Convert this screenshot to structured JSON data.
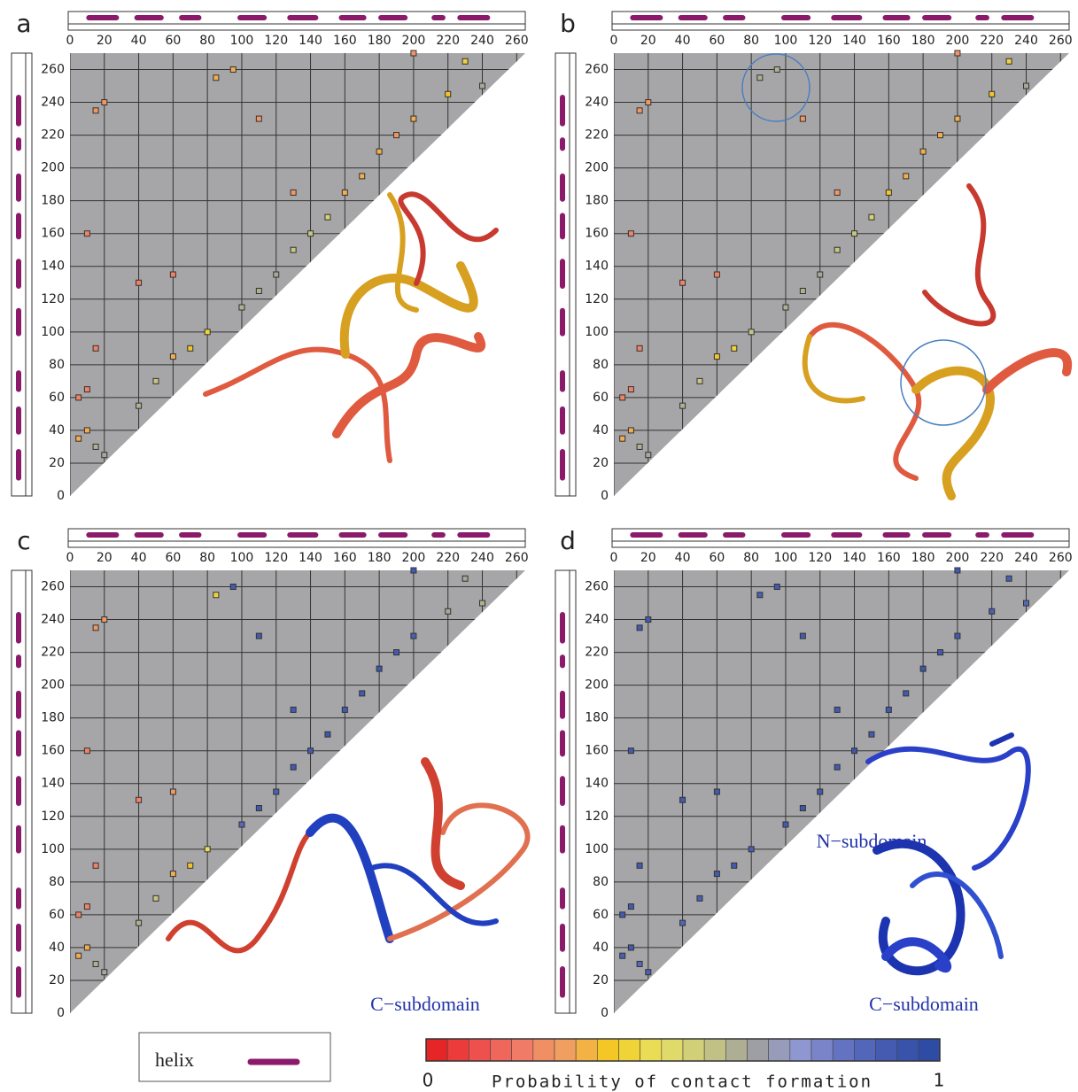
{
  "helices": [
    [
      11,
      27
    ],
    [
      39,
      53
    ],
    [
      65,
      75
    ],
    [
      99,
      113
    ],
    [
      128,
      143
    ],
    [
      158,
      171
    ],
    [
      181,
      195
    ],
    [
      212,
      217
    ],
    [
      227,
      243
    ]
  ],
  "legend": {
    "label": "helix"
  },
  "colorbar": {
    "ticks": [
      0,
      1
    ],
    "label": "Probability of contact formation",
    "colors": [
      "#e31a1c",
      "#ee4a48",
      "#f07a68",
      "#f0a060",
      "#f5cc20",
      "#e8e060",
      "#c8c880",
      "#a0a0a0",
      "#9098d0",
      "#6070c0",
      "#4058b0",
      "#2848a0"
    ]
  },
  "chart_data": [
    {
      "type": "scatter",
      "panel": "a",
      "xlim": [
        0,
        265
      ],
      "ylim": [
        0,
        270
      ],
      "xticks": [
        0,
        20,
        40,
        60,
        80,
        100,
        120,
        140,
        160,
        180,
        200,
        220,
        240,
        260
      ],
      "yticks": [
        0,
        20,
        40,
        60,
        80,
        100,
        120,
        140,
        160,
        180,
        200,
        220,
        240,
        260
      ],
      "x": [
        5,
        10,
        15,
        20,
        5,
        10,
        40,
        50,
        60,
        70,
        80,
        100,
        110,
        120,
        130,
        140,
        150,
        160,
        170,
        180,
        190,
        200,
        220,
        240,
        15,
        20,
        10,
        40,
        85,
        95,
        110,
        130,
        15,
        60,
        230,
        200
      ],
      "values": [
        35,
        40,
        30,
        25,
        60,
        65,
        55,
        70,
        85,
        90,
        100,
        115,
        125,
        135,
        150,
        160,
        170,
        185,
        195,
        210,
        220,
        230,
        245,
        250,
        235,
        240,
        160,
        130,
        255,
        260,
        230,
        185,
        90,
        135,
        265,
        270
      ],
      "probability": [
        0.3,
        0.3,
        0.6,
        0.62,
        0.2,
        0.2,
        0.6,
        0.55,
        0.3,
        0.35,
        0.4,
        0.6,
        0.6,
        0.62,
        0.55,
        0.55,
        0.5,
        0.3,
        0.3,
        0.3,
        0.25,
        0.3,
        0.35,
        0.62,
        0.25,
        0.25,
        0.2,
        0.2,
        0.3,
        0.3,
        0.25,
        0.25,
        0.2,
        0.2,
        0.4,
        0.25
      ],
      "annotations": []
    },
    {
      "type": "scatter",
      "panel": "b",
      "xlim": [
        0,
        265
      ],
      "ylim": [
        0,
        270
      ],
      "xticks": [
        0,
        20,
        40,
        60,
        80,
        100,
        120,
        140,
        160,
        180,
        200,
        220,
        240,
        260
      ],
      "yticks": [
        0,
        20,
        40,
        60,
        80,
        100,
        120,
        140,
        160,
        180,
        200,
        220,
        240,
        260
      ],
      "x": [
        5,
        10,
        15,
        20,
        5,
        10,
        40,
        50,
        60,
        70,
        80,
        100,
        110,
        120,
        130,
        140,
        150,
        160,
        170,
        180,
        190,
        200,
        220,
        240,
        15,
        20,
        10,
        40,
        85,
        95,
        110,
        130,
        15,
        60,
        230,
        200
      ],
      "values": [
        35,
        40,
        30,
        25,
        60,
        65,
        55,
        70,
        85,
        90,
        100,
        115,
        125,
        135,
        150,
        160,
        170,
        185,
        195,
        210,
        220,
        230,
        245,
        250,
        235,
        240,
        160,
        130,
        255,
        260,
        230,
        185,
        90,
        135,
        265,
        270
      ],
      "probability": [
        0.3,
        0.3,
        0.6,
        0.62,
        0.2,
        0.2,
        0.6,
        0.55,
        0.35,
        0.4,
        0.55,
        0.6,
        0.6,
        0.62,
        0.55,
        0.55,
        0.5,
        0.35,
        0.3,
        0.3,
        0.3,
        0.3,
        0.35,
        0.62,
        0.25,
        0.25,
        0.2,
        0.2,
        0.6,
        0.6,
        0.25,
        0.25,
        0.2,
        0.2,
        0.4,
        0.25
      ],
      "annotations": []
    },
    {
      "type": "scatter",
      "panel": "c",
      "xlim": [
        0,
        265
      ],
      "ylim": [
        0,
        270
      ],
      "xticks": [
        0,
        20,
        40,
        60,
        80,
        100,
        120,
        140,
        160,
        180,
        200,
        220,
        240,
        260
      ],
      "yticks": [
        0,
        20,
        40,
        60,
        80,
        100,
        120,
        140,
        160,
        180,
        200,
        220,
        240,
        260
      ],
      "x": [
        5,
        10,
        15,
        20,
        5,
        10,
        40,
        50,
        60,
        70,
        80,
        100,
        110,
        120,
        130,
        140,
        150,
        160,
        170,
        180,
        190,
        200,
        220,
        240,
        15,
        20,
        10,
        40,
        85,
        95,
        110,
        130,
        15,
        60,
        230,
        200
      ],
      "values": [
        35,
        40,
        30,
        25,
        60,
        65,
        55,
        70,
        85,
        90,
        100,
        115,
        125,
        135,
        150,
        160,
        170,
        185,
        195,
        210,
        220,
        230,
        245,
        250,
        235,
        240,
        160,
        130,
        255,
        260,
        230,
        185,
        90,
        135,
        265,
        270
      ],
      "probability": [
        0.3,
        0.3,
        0.6,
        0.62,
        0.2,
        0.2,
        0.6,
        0.55,
        0.3,
        0.35,
        0.45,
        0.85,
        0.9,
        0.88,
        0.9,
        0.9,
        0.92,
        0.9,
        0.9,
        0.92,
        0.9,
        0.88,
        0.62,
        0.6,
        0.25,
        0.25,
        0.2,
        0.2,
        0.4,
        0.9,
        0.9,
        0.9,
        0.2,
        0.25,
        0.62,
        0.9
      ],
      "annotations": [
        {
          "text": "C−subdomain",
          "x": 480,
          "y": 552
        }
      ]
    },
    {
      "type": "scatter",
      "panel": "d",
      "xlim": [
        0,
        265
      ],
      "ylim": [
        0,
        270
      ],
      "xticks": [
        0,
        20,
        40,
        60,
        80,
        100,
        120,
        140,
        160,
        180,
        200,
        220,
        240,
        260
      ],
      "yticks": [
        0,
        20,
        40,
        60,
        80,
        100,
        120,
        140,
        160,
        180,
        200,
        220,
        240,
        260
      ],
      "x": [
        5,
        10,
        15,
        20,
        5,
        10,
        40,
        50,
        60,
        70,
        80,
        100,
        110,
        120,
        130,
        140,
        150,
        160,
        170,
        180,
        190,
        200,
        220,
        240,
        15,
        20,
        10,
        40,
        85,
        95,
        110,
        130,
        15,
        60,
        230,
        200
      ],
      "values": [
        35,
        40,
        30,
        25,
        60,
        65,
        55,
        70,
        85,
        90,
        100,
        115,
        125,
        135,
        150,
        160,
        170,
        185,
        195,
        210,
        220,
        230,
        245,
        250,
        235,
        240,
        160,
        130,
        255,
        260,
        230,
        185,
        90,
        135,
        265,
        270
      ],
      "probability": [
        0.88,
        0.9,
        0.85,
        0.88,
        0.9,
        0.9,
        0.86,
        0.88,
        0.9,
        0.9,
        0.88,
        0.9,
        0.92,
        0.9,
        0.9,
        0.92,
        0.9,
        0.9,
        0.9,
        0.92,
        0.9,
        0.9,
        0.88,
        0.85,
        0.9,
        0.9,
        0.9,
        0.9,
        0.88,
        0.9,
        0.9,
        0.9,
        0.9,
        0.9,
        0.88,
        0.9
      ],
      "annotations": [
        {
          "text": "N−subdomain",
          "x": 370,
          "y": 368
        },
        {
          "text": "C−subdomain",
          "x": 429,
          "y": 552
        }
      ]
    }
  ]
}
